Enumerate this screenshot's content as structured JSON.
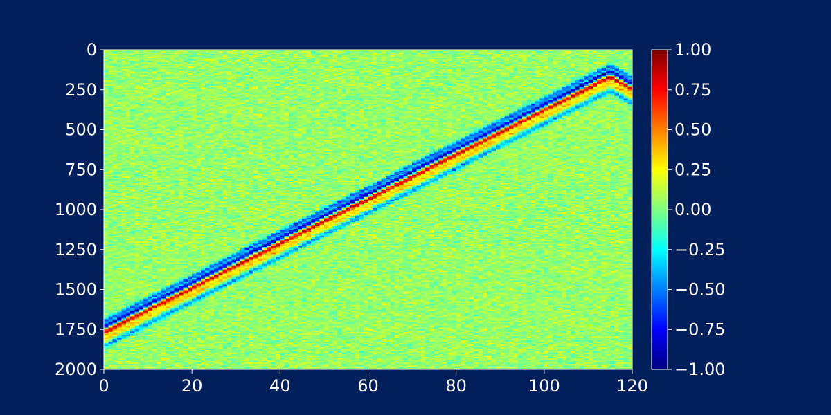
{
  "colors": {
    "background": "#001f5b",
    "text": "#ffffff",
    "colormap": "jet",
    "colormap_stops": [
      "#00007f",
      "#0000ff",
      "#007fff",
      "#00ffff",
      "#7fff7f",
      "#ffff00",
      "#ff7f00",
      "#ff0000",
      "#7f0000"
    ]
  },
  "chart_data": {
    "type": "heatmap",
    "title": "",
    "xlabel": "",
    "ylabel": "",
    "xlim": [
      0,
      120
    ],
    "ylim": [
      0,
      2000
    ],
    "y_inverted": true,
    "x_ticks": [
      "0",
      "20",
      "40",
      "60",
      "80",
      "100",
      "120"
    ],
    "y_ticks": [
      "0",
      "250",
      "500",
      "750",
      "1000",
      "1250",
      "1500",
      "1750",
      "2000"
    ],
    "colorbar": {
      "min": -1.0,
      "max": 1.0,
      "ticks": [
        "1.00",
        "0.75",
        "0.50",
        "0.25",
        "0.00",
        "−0.25",
        "−0.50",
        "−0.75",
        "−1.00"
      ],
      "tick_values": [
        1.0,
        0.75,
        0.5,
        0.25,
        0.0,
        -0.25,
        -0.5,
        -0.75,
        -1.0
      ]
    },
    "background_noise_mean": 0.05,
    "features": [
      {
        "name": "",
        "description_values": "diagonal wavelet band",
        "path_x": [
          0,
          115,
          120
        ],
        "path_y": [
          1760,
          160,
          240
        ],
        "lobes": [
          {
            "offset_y": -60,
            "value": -0.6
          },
          {
            "offset_y": -25,
            "value": -0.9
          },
          {
            "offset_y": 10,
            "value": 0.8
          },
          {
            "offset_y": 50,
            "value": 0.3
          },
          {
            "offset_y": 95,
            "value": -0.5
          }
        ]
      }
    ]
  }
}
